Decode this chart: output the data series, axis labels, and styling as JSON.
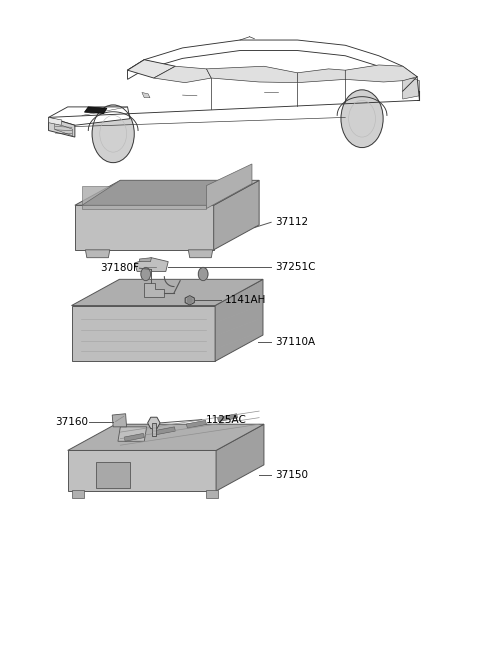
{
  "bg_color": "#ffffff",
  "line_color": "#555555",
  "label_color": "#000000",
  "label_fontsize": 7.5,
  "parts_labels": [
    "37112",
    "37251C",
    "37180F",
    "1141AH",
    "37110A",
    "37160",
    "1125AC",
    "37150"
  ]
}
